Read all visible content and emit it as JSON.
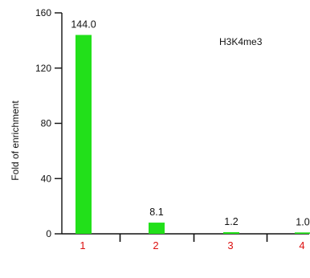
{
  "chart_data": {
    "type": "bar",
    "title": "",
    "xlabel": "",
    "ylabel": "Fold of enrichment",
    "annotation": "H3K4me3",
    "categories": [
      "1",
      "2",
      "3",
      "4"
    ],
    "values": [
      144.0,
      8.1,
      1.2,
      1.0
    ],
    "data_labels": [
      "144.0",
      "8.1",
      "1.2",
      "1.0"
    ],
    "yticks": [
      0,
      40,
      80,
      120,
      160
    ],
    "ylim": [
      0,
      160
    ],
    "grid": false,
    "legend": "none",
    "colors": {
      "bar": "#22e01a",
      "xtick_labels": "#dd1111",
      "axis": "#111111"
    }
  }
}
